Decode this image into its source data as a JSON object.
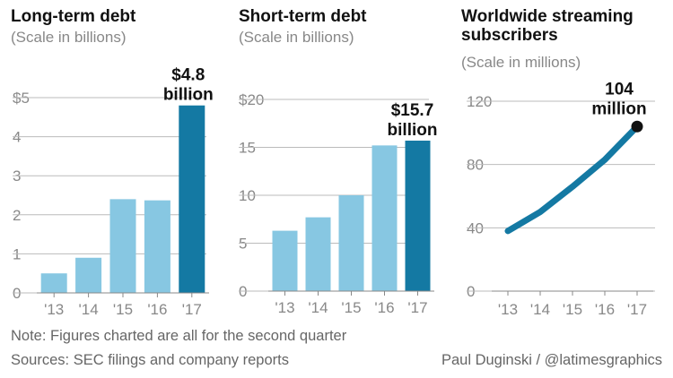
{
  "chart_data": [
    {
      "type": "bar",
      "title": "Long-term debt",
      "subtitle": "(Scale in billions)",
      "categories": [
        "'13",
        "'14",
        "'15",
        "'16",
        "'17"
      ],
      "values": [
        0.5,
        0.9,
        2.4,
        2.37,
        4.8
      ],
      "highlight_index": 4,
      "yticks": [
        "0",
        "1",
        "2",
        "3",
        "4",
        "$5"
      ],
      "ylim": [
        0,
        5
      ],
      "callout": [
        "$4.8",
        "billion"
      ],
      "grid": false,
      "colors": {
        "bar": "#87c7e2",
        "highlight": "#1479a3"
      }
    },
    {
      "type": "bar",
      "title": "Short-term debt",
      "subtitle": "(Scale in billions)",
      "categories": [
        "'13",
        "'14",
        "'15",
        "'16",
        "'17"
      ],
      "values": [
        6.3,
        7.7,
        10.0,
        15.2,
        15.7
      ],
      "highlight_index": 4,
      "yticks": [
        "0",
        "5",
        "10",
        "15",
        "$20"
      ],
      "ylim": [
        0,
        20
      ],
      "callout": [
        "$15.7",
        "billion"
      ],
      "grid": false,
      "colors": {
        "bar": "#87c7e2",
        "highlight": "#1479a3"
      }
    },
    {
      "type": "line",
      "title": "Worldwide streaming subscribers",
      "title_lines": [
        "Worldwide streaming",
        "subscribers"
      ],
      "subtitle": "(Scale in millions)",
      "categories": [
        "'13",
        "'14",
        "'15",
        "'16",
        "'17"
      ],
      "values": [
        38,
        50,
        66,
        83,
        104
      ],
      "yticks": [
        "0",
        "40",
        "80",
        "120"
      ],
      "ylim": [
        0,
        120
      ],
      "callout": [
        "104",
        "million"
      ],
      "grid": false,
      "colors": {
        "line": "#1479a3",
        "endpoint": "#111111"
      }
    }
  ],
  "footer": {
    "note": "Note: Figures charted are all for the second quarter",
    "sources": "Sources: SEC filings and company reports",
    "credit": "Paul Duginski / @latimesgraphics"
  }
}
